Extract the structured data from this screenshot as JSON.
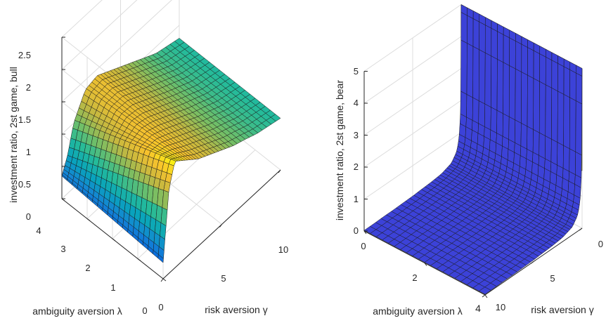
{
  "chart_data": [
    {
      "type": "surface",
      "xlabel": "risk aversion γ",
      "ylabel": "ambiguity aversion λ",
      "zlabel": "investment ratio, 2st game, bull",
      "xlim": [
        0,
        10
      ],
      "ylim": [
        0,
        4
      ],
      "zlim": [
        0,
        2.5
      ],
      "x_ticks": [
        "0",
        "5",
        "10"
      ],
      "y_ticks": [
        "0",
        "1",
        "2",
        "3",
        "4"
      ],
      "z_ticks": [
        "0",
        "0.5",
        "1",
        "1.5",
        "2",
        "2.5"
      ],
      "colormap": "parula",
      "grid": true,
      "profile": {
        "gamma": [
          0,
          0.5,
          1,
          2,
          3,
          4,
          5,
          6,
          7,
          8,
          9,
          10
        ],
        "value_at_lambda_0": [
          0.25,
          1.3,
          1.65,
          1.5,
          1.35,
          1.25,
          1.15,
          1.05,
          0.98,
          0.9,
          0.85,
          0.8
        ],
        "value_at_lambda_4": [
          0.35,
          0.6,
          1.0,
          1.35,
          1.4,
          1.3,
          1.2,
          1.1,
          1.0,
          0.9,
          0.85,
          0.8
        ]
      }
    },
    {
      "type": "surface",
      "xlabel": "risk aversion γ",
      "ylabel": "ambiguity aversion λ",
      "zlabel": "investment ratio, 2st game, bear",
      "xlim": [
        0,
        10
      ],
      "ylim": [
        0,
        4
      ],
      "zlim": [
        0,
        5
      ],
      "x_ticks": [
        "10",
        "5",
        "0"
      ],
      "y_ticks": [
        "0",
        "2",
        "4"
      ],
      "z_ticks": [
        "0",
        "1",
        "2",
        "3",
        "4",
        "5"
      ],
      "grid": true,
      "colors": {
        "low": "#3c42d8",
        "high": "#f6f62b"
      },
      "profile": {
        "gamma": [
          0,
          0.05,
          0.1,
          0.2,
          0.3,
          0.5,
          1,
          2,
          3,
          4,
          5,
          6,
          7,
          8,
          9,
          10
        ],
        "value": [
          5.0,
          1.8,
          1.45,
          0.95,
          0.72,
          0.48,
          0.25,
          0.13,
          0.09,
          0.07,
          0.05,
          0.04,
          0.03,
          0.03,
          0.02,
          0.02
        ]
      }
    }
  ]
}
